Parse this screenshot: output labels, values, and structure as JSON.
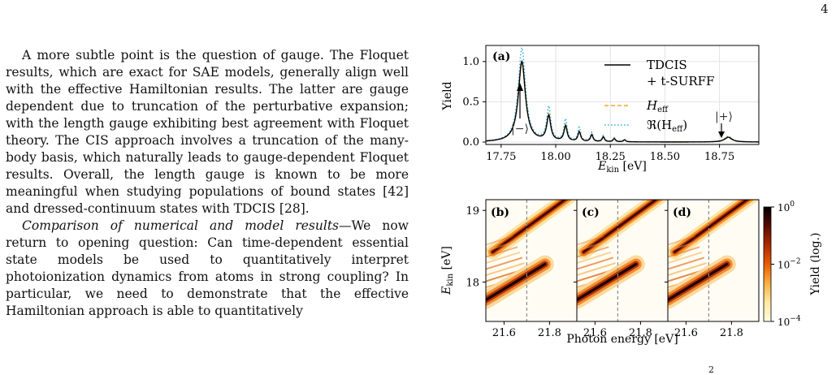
{
  "page": {
    "number": "4"
  },
  "text": {
    "para1": "A more subtle point is the question of gauge. The Floquet results, which are exact for SAE models, generally align well with the effective Hamiltonian results. The latter are gauge dependent due to truncation of the perturbative expansion; with the length gauge exhibiting best agreement with Floquet theory. The CIS approach involves a truncation of the many-body basis, which naturally leads to gauge-dependent Floquet results. Overall, the length gauge is known to be more meaningful when studying populations of bound states [42] and dressed-continuum states with TDCIS [28].",
    "para2_head": "Comparison of numerical and model results",
    "para2_body": "—We now return to opening question: Can time-dependent essential state models be used to quantitatively interpret photoionization dynamics from atoms in strong coupling? In particular, we need to demonstrate that the effective Hamiltonian approach is able to quantitatively"
  },
  "caption_fragment": "2",
  "figure": {
    "panel_a": {
      "label": "(a)",
      "ylabel": "Yield",
      "xlabel_main": "E",
      "xlabel_sub": "kin",
      "xlabel_unit": " [eV]",
      "annotations": {
        "minus": "|−⟩",
        "plus": "|+⟩"
      },
      "legend": [
        {
          "line1": "TDCIS",
          "line2": "+ t-SURFF",
          "color": "#000000",
          "style": "solid"
        },
        {
          "line1": "H",
          "sub": "eff",
          "color": "#f5a623",
          "style": "dashed"
        },
        {
          "line1": "ℜ(H",
          "sub": "eff",
          "tail": ")",
          "color": "#3aaee8",
          "style": "dotted"
        }
      ]
    },
    "panel_bcd": {
      "labels": [
        "(b)",
        "(c)",
        "(d)"
      ],
      "ylabel_main": "E",
      "ylabel_sub": "kin",
      "ylabel_unit": " [eV]",
      "xlabel": "Photon energy [eV]",
      "dashed_line_x": 21.7,
      "colorbar": {
        "label": "Yield (log.)",
        "ticks": [
          {
            "base": "10",
            "exp": "0"
          },
          {
            "base": "10",
            "exp": "−2"
          },
          {
            "base": "10",
            "exp": "−4"
          }
        ],
        "colors": [
          "#000000",
          "#5a0a00",
          "#b02a00",
          "#e85d00",
          "#fbb040",
          "#ffe9a0",
          "#fffbe0"
        ]
      }
    }
  },
  "chart_data": [
    {
      "type": "line",
      "panel": "(a)",
      "xlabel": "E_kin [eV]",
      "ylabel": "Yield",
      "xlim": [
        17.68,
        18.93
      ],
      "ylim": [
        -0.03,
        1.2
      ],
      "xticks": [
        17.75,
        18.0,
        18.25,
        18.5,
        18.75
      ],
      "xtick_labels": [
        "17.75",
        "18.00",
        "18.25",
        "18.50",
        "18.75"
      ],
      "yticks": [
        0.0,
        0.5,
        1.0
      ],
      "ytick_labels": [
        "0.0",
        "0.5",
        "1.0"
      ],
      "grid": true,
      "legend_position": "right",
      "series": [
        {
          "name": "TDCIS + t-SURFF",
          "color": "#000000",
          "peaks": [
            {
              "x": 17.845,
              "y": 1.0,
              "w": 0.034
            },
            {
              "x": 17.968,
              "y": 0.31,
              "w": 0.019
            },
            {
              "x": 18.045,
              "y": 0.19,
              "w": 0.015
            },
            {
              "x": 18.108,
              "y": 0.12,
              "w": 0.013
            },
            {
              "x": 18.165,
              "y": 0.085,
              "w": 0.012
            },
            {
              "x": 18.218,
              "y": 0.06,
              "w": 0.011
            },
            {
              "x": 18.268,
              "y": 0.04,
              "w": 0.011
            },
            {
              "x": 18.315,
              "y": 0.025,
              "w": 0.011
            },
            {
              "x": 18.79,
              "y": 0.06,
              "w": 0.035
            }
          ]
        },
        {
          "name": "H_eff",
          "color": "#f5a623",
          "peaks": [
            {
              "x": 17.845,
              "y": 0.98,
              "w": 0.034
            },
            {
              "x": 17.968,
              "y": 0.33,
              "w": 0.019
            },
            {
              "x": 18.045,
              "y": 0.2,
              "w": 0.015
            },
            {
              "x": 18.108,
              "y": 0.125,
              "w": 0.013
            },
            {
              "x": 18.165,
              "y": 0.085,
              "w": 0.012
            },
            {
              "x": 18.218,
              "y": 0.06,
              "w": 0.011
            },
            {
              "x": 18.268,
              "y": 0.04,
              "w": 0.011
            },
            {
              "x": 18.315,
              "y": 0.025,
              "w": 0.011
            },
            {
              "x": 18.79,
              "y": 0.055,
              "w": 0.035
            }
          ]
        },
        {
          "name": "ℜ(H_eff)",
          "color": "#3aaee8",
          "peaks": [
            {
              "x": 17.845,
              "y": 1.17,
              "w": 0.034
            },
            {
              "x": 17.968,
              "y": 0.42,
              "w": 0.019
            },
            {
              "x": 18.045,
              "y": 0.27,
              "w": 0.015
            },
            {
              "x": 18.108,
              "y": 0.17,
              "w": 0.013
            },
            {
              "x": 18.165,
              "y": 0.11,
              "w": 0.012
            },
            {
              "x": 18.218,
              "y": 0.075,
              "w": 0.011
            },
            {
              "x": 18.268,
              "y": 0.05,
              "w": 0.011
            },
            {
              "x": 18.315,
              "y": 0.03,
              "w": 0.011
            },
            {
              "x": 18.79,
              "y": 0.07,
              "w": 0.035
            }
          ]
        }
      ]
    },
    {
      "type": "heatmap",
      "panels": [
        "(b)",
        "(c)",
        "(d)"
      ],
      "xlabel": "Photon energy [eV]",
      "ylabel": "E_kin [eV]",
      "xlim": [
        21.52,
        21.92
      ],
      "ylim": [
        17.45,
        19.15
      ],
      "xticks": [
        21.6,
        21.8
      ],
      "xtick_labels": [
        "21.6",
        "21.8"
      ],
      "yticks": [
        18,
        19
      ],
      "ytick_labels": [
        "18",
        "19"
      ],
      "color_scale": "log",
      "colorbar_range": [
        0.0001,
        1
      ],
      "upper_branch": {
        "x0": 21.52,
        "y0": 18.35,
        "slope": 2.3,
        "ymax": 19.15,
        "width": 0.06
      },
      "lower_branch": {
        "x0": 21.52,
        "y0": 17.75,
        "slope": 0.8,
        "width": 0.09
      },
      "fringes": {
        "count": 9,
        "y_start": 18.52,
        "y_step": -0.085
      }
    }
  ]
}
